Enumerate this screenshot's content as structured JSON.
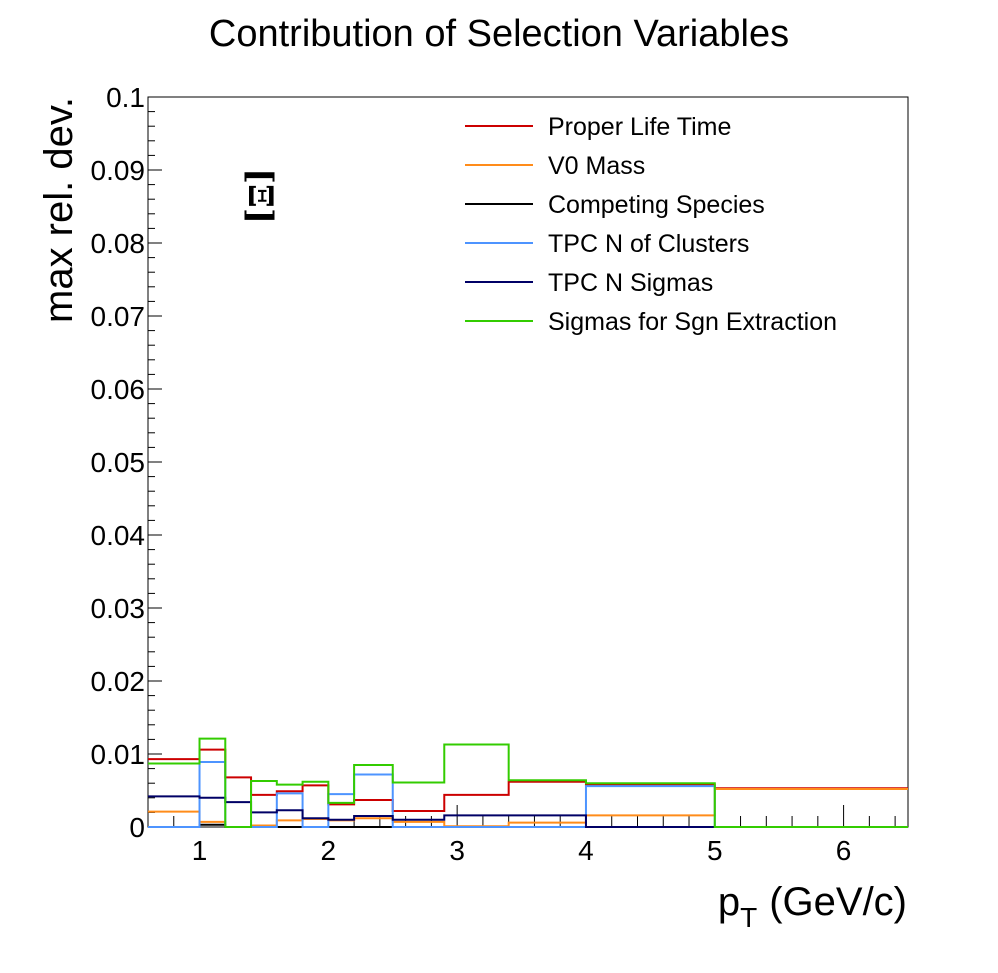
{
  "chart_data": {
    "type": "line",
    "title": "Contribution of Selection Variables",
    "xlabel": "p",
    "xlabel_sub": "T",
    "xlabel_unit": "(GeV/c)",
    "ylabel": "max rel. dev.",
    "annotation": "[Ξ]",
    "xlim": [
      0.6,
      6.5
    ],
    "ylim": [
      0,
      0.1
    ],
    "x_ticks": [
      1,
      2,
      3,
      4,
      5,
      6
    ],
    "x_tick_labels": [
      "1",
      "2",
      "3",
      "4",
      "5",
      "6"
    ],
    "y_ticks": [
      0,
      0.01,
      0.02,
      0.03,
      0.04,
      0.05,
      0.06,
      0.07,
      0.08,
      0.09,
      0.1
    ],
    "y_tick_labels": [
      "0",
      "0.01",
      "0.02",
      "0.03",
      "0.04",
      "0.05",
      "0.06",
      "0.07",
      "0.08",
      "0.09",
      "0.1"
    ],
    "grid": false,
    "legend_position": "top-right",
    "bin_edges": [
      0.6,
      1.0,
      1.2,
      1.4,
      1.6,
      1.8,
      2.0,
      2.2,
      2.5,
      2.9,
      3.4,
      4.0,
      5.0,
      6.5
    ],
    "series": [
      {
        "name": "Proper Life Time",
        "color": "#cc0000",
        "values": [
          0.0093,
          0.0106,
          0.0068,
          0.0044,
          0.0049,
          0.0057,
          0.0031,
          0.0037,
          0.0022,
          0.0044,
          0.0062,
          0.0058,
          0.0053
        ]
      },
      {
        "name": "V0 Mass",
        "color": "#ff8c1a",
        "values": [
          0.0021,
          0.0007,
          0.0,
          0.0002,
          0.0009,
          0.0011,
          0.0009,
          0.0012,
          0.0007,
          0.0001,
          0.0006,
          0.0016,
          0.0052
        ]
      },
      {
        "name": "Competing Species",
        "color": "#000000",
        "values": [
          0.0,
          0.0003,
          0.0,
          0.0,
          0.0,
          0.0,
          0.0,
          0.0,
          0.0,
          0.0,
          0.0,
          0.0,
          0.0
        ]
      },
      {
        "name": "TPC N of Clusters",
        "color": "#4d94ff",
        "values": [
          0.0,
          0.0089,
          0.0,
          0.0,
          0.0046,
          0.0,
          0.0045,
          0.0072,
          0.0,
          0.0,
          0.0,
          0.0056,
          0.0
        ]
      },
      {
        "name": "TPC N Sigmas",
        "color": "#000066",
        "values": [
          0.0042,
          0.004,
          0.0034,
          0.002,
          0.0023,
          0.0012,
          0.001,
          0.0015,
          0.001,
          0.0016,
          0.0016,
          0.0,
          0.0
        ]
      },
      {
        "name": "Sigmas for Sgn Extraction",
        "color": "#33cc00",
        "values": [
          0.0087,
          0.0121,
          0.0,
          0.0063,
          0.0058,
          0.0062,
          0.0033,
          0.0085,
          0.0061,
          0.0113,
          0.0064,
          0.006,
          0.0
        ]
      }
    ]
  }
}
